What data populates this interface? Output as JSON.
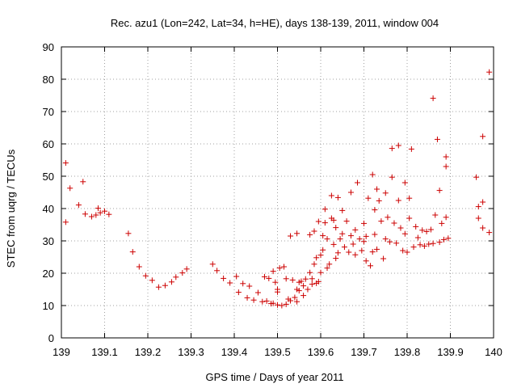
{
  "chart_data": {
    "type": "scatter",
    "title": "Rec. azu1 (Lon=242, Lat=34, h=HE), days 138-139, 2011, window 004",
    "xlabel": "GPS time / Days of year 2011",
    "ylabel": "STEC from uqrg / TECUs",
    "xlim": [
      139,
      140
    ],
    "ylim": [
      0,
      90
    ],
    "x_ticks": [
      139,
      139.1,
      139.2,
      139.3,
      139.4,
      139.5,
      139.6,
      139.7,
      139.8,
      139.9,
      140
    ],
    "x_tick_labels": [
      "139",
      "139.1",
      "139.2",
      "139.3",
      "139.4",
      "139.5",
      "139.6",
      "139.7",
      "139.8",
      "139.9",
      "140"
    ],
    "y_ticks": [
      0,
      10,
      20,
      30,
      40,
      50,
      60,
      70,
      80,
      90
    ],
    "y_tick_labels": [
      "0",
      "10",
      "20",
      "30",
      "40",
      "50",
      "60",
      "70",
      "80",
      "90"
    ],
    "marker": "+",
    "color": "#cc0000",
    "grid": true,
    "points": [
      [
        139.01,
        54.1
      ],
      [
        139.01,
        35.8
      ],
      [
        139.02,
        46.3
      ],
      [
        139.04,
        41.1
      ],
      [
        139.05,
        48.3
      ],
      [
        139.055,
        38.3
      ],
      [
        139.07,
        37.5
      ],
      [
        139.08,
        38.0
      ],
      [
        139.085,
        40.1
      ],
      [
        139.09,
        38.7
      ],
      [
        139.1,
        39.2
      ],
      [
        139.11,
        38.2
      ],
      [
        139.155,
        32.3
      ],
      [
        139.165,
        26.6
      ],
      [
        139.18,
        22.0
      ],
      [
        139.195,
        19.2
      ],
      [
        139.21,
        17.8
      ],
      [
        139.225,
        15.7
      ],
      [
        139.24,
        16.2
      ],
      [
        139.255,
        17.3
      ],
      [
        139.265,
        18.8
      ],
      [
        139.28,
        20.1
      ],
      [
        139.29,
        21.3
      ],
      [
        139.35,
        22.8
      ],
      [
        139.36,
        20.8
      ],
      [
        139.375,
        18.4
      ],
      [
        139.39,
        17.0
      ],
      [
        139.405,
        19.0
      ],
      [
        139.41,
        14.1
      ],
      [
        139.42,
        16.8
      ],
      [
        139.43,
        12.4
      ],
      [
        139.435,
        16.0
      ],
      [
        139.445,
        11.7
      ],
      [
        139.455,
        14.0
      ],
      [
        139.465,
        11.2
      ],
      [
        139.47,
        18.9
      ],
      [
        139.475,
        11.4
      ],
      [
        139.48,
        18.4
      ],
      [
        139.485,
        10.6
      ],
      [
        139.49,
        10.7
      ],
      [
        139.49,
        20.6
      ],
      [
        139.495,
        17.2
      ],
      [
        139.5,
        10.2
      ],
      [
        139.5,
        14.2
      ],
      [
        139.5,
        15.0
      ],
      [
        139.505,
        21.6
      ],
      [
        139.51,
        10.0
      ],
      [
        139.515,
        22.0
      ],
      [
        139.52,
        10.4
      ],
      [
        139.52,
        18.3
      ],
      [
        139.525,
        12.0
      ],
      [
        139.53,
        11.5
      ],
      [
        139.53,
        31.5
      ],
      [
        139.535,
        17.9
      ],
      [
        139.54,
        12.5
      ],
      [
        139.545,
        11.2
      ],
      [
        139.545,
        15.0
      ],
      [
        139.545,
        32.3
      ],
      [
        139.55,
        14.6
      ],
      [
        139.55,
        17.2
      ],
      [
        139.555,
        17.5
      ],
      [
        139.56,
        13.1
      ],
      [
        139.56,
        16.1
      ],
      [
        139.565,
        18.2
      ],
      [
        139.57,
        15.0
      ],
      [
        139.575,
        20.2
      ],
      [
        139.575,
        31.9
      ],
      [
        139.58,
        16.6
      ],
      [
        139.58,
        18.3
      ],
      [
        139.585,
        22.8
      ],
      [
        139.585,
        33.0
      ],
      [
        139.59,
        16.9
      ],
      [
        139.59,
        24.8
      ],
      [
        139.595,
        17.4
      ],
      [
        139.595,
        36.0
      ],
      [
        139.6,
        20.2
      ],
      [
        139.6,
        25.6
      ],
      [
        139.605,
        27.2
      ],
      [
        139.605,
        31.6
      ],
      [
        139.61,
        35.6
      ],
      [
        139.61,
        39.8
      ],
      [
        139.615,
        21.6
      ],
      [
        139.615,
        30.6
      ],
      [
        139.62,
        22.8
      ],
      [
        139.625,
        37.0
      ],
      [
        139.625,
        44.0
      ],
      [
        139.63,
        28.9
      ],
      [
        139.63,
        36.4
      ],
      [
        139.635,
        24.6
      ],
      [
        139.635,
        34.1
      ],
      [
        139.64,
        43.4
      ],
      [
        139.64,
        26.3
      ],
      [
        139.645,
        30.6
      ],
      [
        139.65,
        32.2
      ],
      [
        139.65,
        39.4
      ],
      [
        139.655,
        28.1
      ],
      [
        139.66,
        36.1
      ],
      [
        139.665,
        26.5
      ],
      [
        139.67,
        31.6
      ],
      [
        139.67,
        45.0
      ],
      [
        139.675,
        29.0
      ],
      [
        139.68,
        33.4
      ],
      [
        139.68,
        25.7
      ],
      [
        139.685,
        48.0
      ],
      [
        139.69,
        30.6
      ],
      [
        139.695,
        27.0
      ],
      [
        139.7,
        29.8
      ],
      [
        139.7,
        35.4
      ],
      [
        139.705,
        23.8
      ],
      [
        139.705,
        31.4
      ],
      [
        139.71,
        43.2
      ],
      [
        139.715,
        22.3
      ],
      [
        139.72,
        26.6
      ],
      [
        139.72,
        50.5
      ],
      [
        139.725,
        39.6
      ],
      [
        139.725,
        32.0
      ],
      [
        139.73,
        46.0
      ],
      [
        139.73,
        27.4
      ],
      [
        139.735,
        42.4
      ],
      [
        139.74,
        36.1
      ],
      [
        139.745,
        24.5
      ],
      [
        139.75,
        30.6
      ],
      [
        139.75,
        44.8
      ],
      [
        139.755,
        37.3
      ],
      [
        139.76,
        29.7
      ],
      [
        139.765,
        49.7
      ],
      [
        139.765,
        58.6
      ],
      [
        139.77,
        35.5
      ],
      [
        139.775,
        29.3
      ],
      [
        139.78,
        59.5
      ],
      [
        139.78,
        42.5
      ],
      [
        139.785,
        34.0
      ],
      [
        139.79,
        27.0
      ],
      [
        139.795,
        48.0
      ],
      [
        139.795,
        32.2
      ],
      [
        139.8,
        26.5
      ],
      [
        139.805,
        43.2
      ],
      [
        139.805,
        37.0
      ],
      [
        139.81,
        58.4
      ],
      [
        139.815,
        28.1
      ],
      [
        139.82,
        34.4
      ],
      [
        139.825,
        31.0
      ],
      [
        139.83,
        28.8
      ],
      [
        139.835,
        33.3
      ],
      [
        139.84,
        28.4
      ],
      [
        139.845,
        32.9
      ],
      [
        139.85,
        29.0
      ],
      [
        139.855,
        33.5
      ],
      [
        139.86,
        74.1
      ],
      [
        139.86,
        29.2
      ],
      [
        139.865,
        38.0
      ],
      [
        139.87,
        61.4
      ],
      [
        139.875,
        45.6
      ],
      [
        139.875,
        29.6
      ],
      [
        139.88,
        35.4
      ],
      [
        139.885,
        30.4
      ],
      [
        139.89,
        56.0
      ],
      [
        139.89,
        53.0
      ],
      [
        139.89,
        37.3
      ],
      [
        139.895,
        30.8
      ],
      [
        139.96,
        49.7
      ],
      [
        139.965,
        40.6
      ],
      [
        139.965,
        37.0
      ],
      [
        139.975,
        62.3
      ],
      [
        139.975,
        42.0
      ],
      [
        139.975,
        34.0
      ],
      [
        139.99,
        82.2
      ],
      [
        139.99,
        32.6
      ]
    ]
  }
}
